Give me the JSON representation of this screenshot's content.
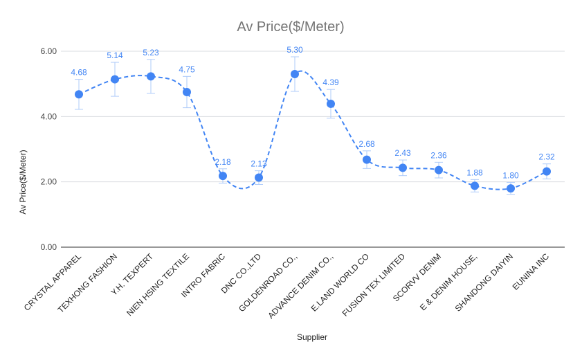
{
  "chart_data": {
    "type": "line",
    "title": "Av Price($/Meter)",
    "xlabel": "Supplier",
    "ylabel": "Av Price($/Meter)",
    "ylim": [
      0,
      6
    ],
    "yticks": [
      "0.00",
      "2.00",
      "4.00",
      "6.00"
    ],
    "grid": true,
    "legend": "none",
    "smooth": true,
    "line_style": "dashed",
    "error_bars": true,
    "colors": {
      "series": "#4285f4",
      "errorbar": "#aecbfa",
      "grid": "#dadce0",
      "axis": "#333333",
      "label": "#4285f4"
    },
    "categories": [
      "CRYSTAL APPAREL",
      "TEXHONG FASHION",
      "Y.H. TEXPERT",
      "NIEN HSING TEXTILE",
      "INTRO FABRIC",
      "DNC CO.,LTD",
      "GOLDENROAD CO.,",
      "ADVANCE DENIM CO.,",
      "E.LAND WORLD CO",
      "FUSION TEX LIMITED",
      "SCORVV DENIM",
      "E & DENIM HOUSE,",
      "SHANDONG DAIYIN",
      "EUNINA INC"
    ],
    "series": [
      {
        "values": [
          4.68,
          5.14,
          5.23,
          4.75,
          2.18,
          2.13,
          5.3,
          4.39,
          2.68,
          2.43,
          2.36,
          1.88,
          1.8,
          2.32
        ],
        "data_labels": [
          "4.68",
          "5.14",
          "5.23",
          "4.75",
          "2.18",
          "2.13",
          "5.30",
          "4.39",
          "2.68",
          "2.43",
          "2.36",
          "1.88",
          "1.80",
          "2.32"
        ],
        "error_low": [
          4.22,
          4.62,
          4.71,
          4.27,
          1.96,
          1.92,
          4.77,
          3.95,
          2.41,
          2.19,
          2.12,
          1.69,
          1.62,
          2.09
        ],
        "error_high": [
          5.14,
          5.66,
          5.75,
          5.23,
          2.4,
          2.34,
          5.83,
          4.83,
          2.95,
          2.67,
          2.6,
          2.07,
          1.98,
          2.55
        ]
      }
    ]
  }
}
